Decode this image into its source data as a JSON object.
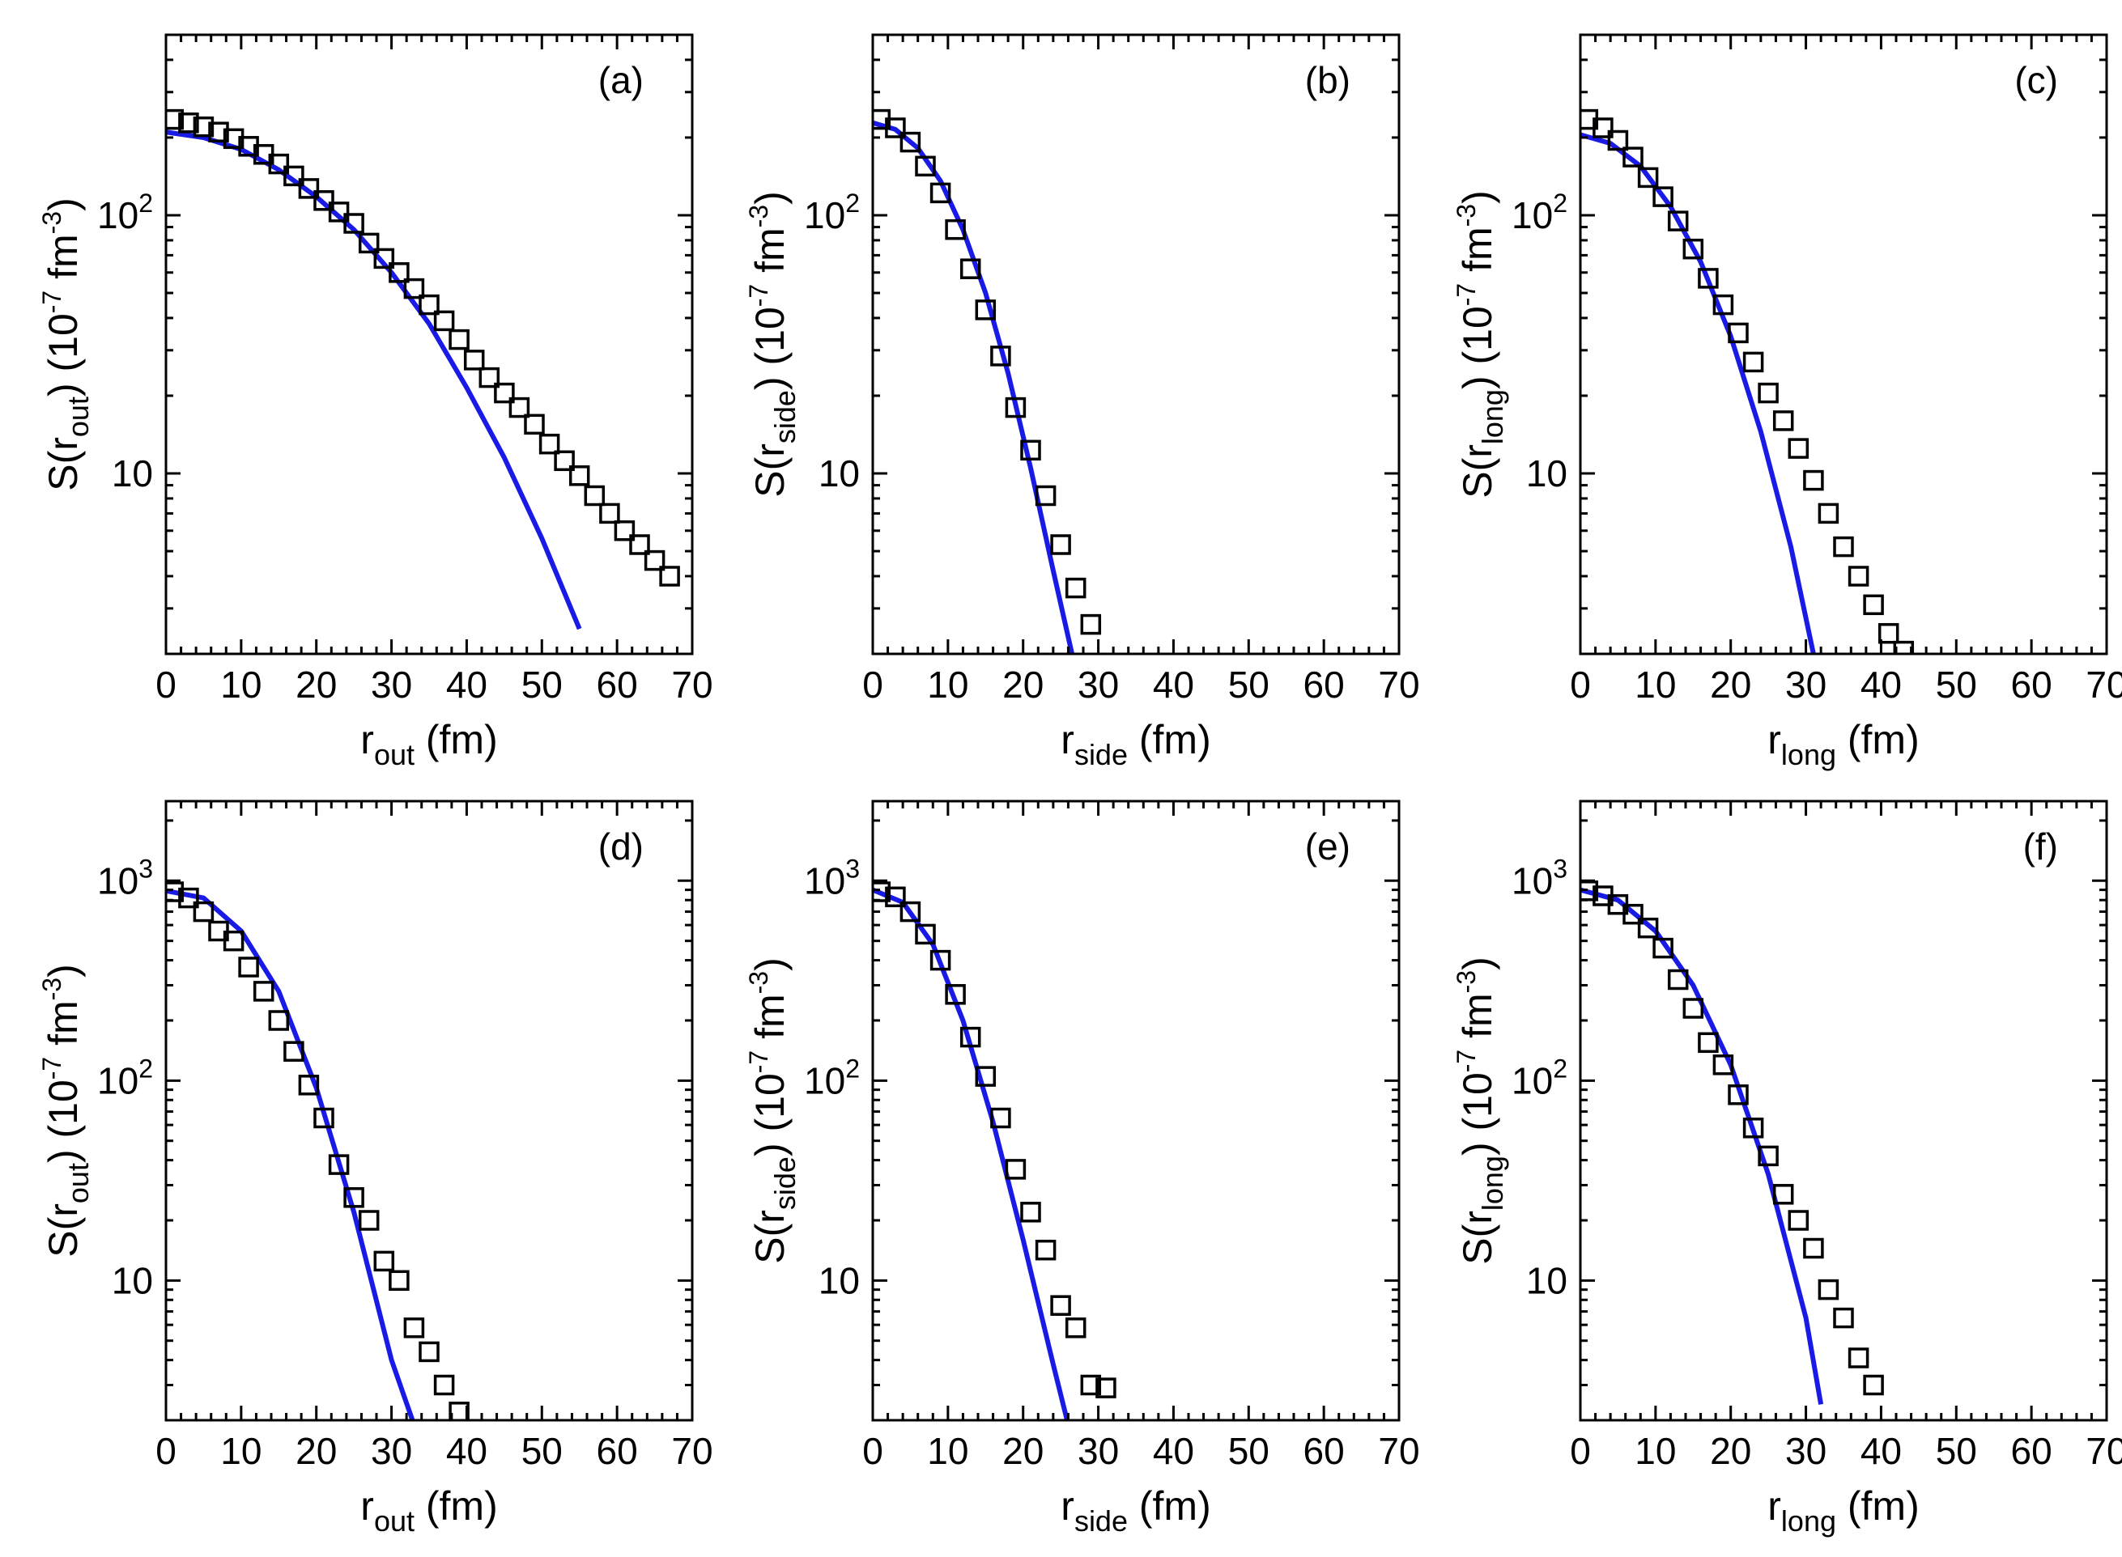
{
  "chart_data": [
    {
      "type": "scatter",
      "panel_label": "(a)",
      "xlabel": {
        "base": "r",
        "sub": "out",
        "unit": " (fm)"
      },
      "ylabel": {
        "pre": "S(r",
        "sub": "out",
        "mid": ") (10",
        "sup1": "-7",
        "mid2": " fm",
        "sup2": "-3",
        "post": ")"
      },
      "xlim": [
        0,
        70
      ],
      "ylim": [
        2,
        500
      ],
      "xticks": [
        "0",
        "10",
        "20",
        "30",
        "40",
        "50",
        "60",
        "70"
      ],
      "yticks": [
        {
          "base": "10",
          "exp": ""
        },
        {
          "base": "10",
          "exp": "2"
        }
      ],
      "series": [
        {
          "name": "data",
          "marker": "open-square",
          "color": "#000000",
          "x": [
            1,
            3,
            5,
            7,
            9,
            11,
            13,
            15,
            17,
            19,
            21,
            23,
            25,
            27,
            29,
            31,
            33,
            35,
            37,
            39,
            41,
            43,
            45,
            47,
            49,
            51,
            53,
            55,
            57,
            59,
            61,
            63,
            65,
            67
          ],
          "y": [
            235,
            228,
            220,
            210,
            198,
            185,
            172,
            158,
            142,
            127,
            114,
            103,
            93,
            78,
            68,
            60,
            52,
            45,
            39,
            33,
            27.5,
            23.5,
            20.5,
            18,
            15.5,
            13,
            11.2,
            9.8,
            8.2,
            7,
            6,
            5.3,
            4.6,
            4
          ]
        },
        {
          "name": "fit",
          "line": "solid",
          "color": "#1a1ae6",
          "x": [
            0,
            5,
            10,
            15,
            20,
            25,
            30,
            35,
            40,
            45,
            50,
            55
          ],
          "y": [
            210,
            200,
            180,
            150,
            118,
            88,
            60,
            38,
            21.5,
            11.5,
            5.6,
            2.5
          ]
        }
      ]
    },
    {
      "type": "scatter",
      "panel_label": "(b)",
      "xlabel": {
        "base": "r",
        "sub": "side",
        "unit": " (fm)"
      },
      "ylabel": {
        "pre": "S(r",
        "sub": "side",
        "mid": ") (10",
        "sup1": "-7",
        "mid2": " fm",
        "sup2": "-3",
        "post": ")"
      },
      "xlim": [
        0,
        70
      ],
      "ylim": [
        2,
        500
      ],
      "xticks": [
        "0",
        "10",
        "20",
        "30",
        "40",
        "50",
        "60",
        "70"
      ],
      "yticks": [
        {
          "base": "10",
          "exp": ""
        },
        {
          "base": "10",
          "exp": "2"
        }
      ],
      "series": [
        {
          "name": "data",
          "marker": "open-square",
          "color": "#000000",
          "x": [
            1,
            3,
            5,
            7,
            9,
            11,
            13,
            15,
            17,
            19,
            21,
            23,
            25,
            27,
            29
          ],
          "y": [
            235,
            218,
            192,
            155,
            122,
            88,
            62,
            43,
            28.5,
            18,
            12.3,
            8.2,
            5.3,
            3.6,
            2.6
          ]
        },
        {
          "name": "fit",
          "line": "solid",
          "color": "#1a1ae6",
          "x": [
            0,
            3,
            6,
            9,
            12,
            15,
            18,
            21,
            24,
            26.5
          ],
          "y": [
            228,
            215,
            182,
            136,
            88,
            50,
            24.5,
            10.5,
            4.2,
            2
          ]
        }
      ]
    },
    {
      "type": "scatter",
      "panel_label": "(c)",
      "xlabel": {
        "base": "r",
        "sub": "long",
        "unit": " (fm)"
      },
      "ylabel": {
        "pre": "S(r",
        "sub": "long",
        "mid": ") (10",
        "sup1": "-7",
        "mid2": " fm",
        "sup2": "-3",
        "post": ")"
      },
      "xlim": [
        0,
        70
      ],
      "ylim": [
        2,
        500
      ],
      "xticks": [
        "0",
        "10",
        "20",
        "30",
        "40",
        "50",
        "60",
        "70"
      ],
      "yticks": [
        {
          "base": "10",
          "exp": ""
        },
        {
          "base": "10",
          "exp": "2"
        }
      ],
      "series": [
        {
          "name": "data",
          "marker": "open-square",
          "color": "#000000",
          "x": [
            1,
            3,
            5,
            7,
            9,
            11,
            13,
            15,
            17,
            19,
            21,
            23,
            25,
            27,
            29,
            31,
            33,
            35,
            37,
            39,
            41,
            43
          ],
          "y": [
            235,
            218,
            195,
            168,
            140,
            118,
            95,
            74,
            57,
            45,
            35,
            27,
            20.5,
            16,
            12.5,
            9.4,
            7,
            5.2,
            4,
            3.1,
            2.4,
            2.05
          ]
        },
        {
          "name": "fit",
          "line": "solid",
          "color": "#1a1ae6",
          "x": [
            0,
            4,
            8,
            12,
            16,
            20,
            24,
            28,
            31
          ],
          "y": [
            205,
            190,
            155,
            108,
            66,
            34,
            14.5,
            5.2,
            2
          ]
        }
      ]
    },
    {
      "type": "scatter",
      "panel_label": "(d)",
      "xlabel": {
        "base": "r",
        "sub": "out",
        "unit": " (fm)"
      },
      "ylabel": {
        "pre": "S(r",
        "sub": "out",
        "mid": ") (10",
        "sup1": "-7",
        "mid2": " fm",
        "sup2": "-3",
        "post": ")"
      },
      "xlim": [
        0,
        70
      ],
      "ylim": [
        2,
        2500
      ],
      "xticks": [
        "0",
        "10",
        "20",
        "30",
        "40",
        "50",
        "60",
        "70"
      ],
      "yticks": [
        {
          "base": "10",
          "exp": ""
        },
        {
          "base": "10",
          "exp": "2"
        },
        {
          "base": "10",
          "exp": "3"
        }
      ],
      "series": [
        {
          "name": "data",
          "marker": "open-square",
          "color": "#000000",
          "x": [
            1,
            3,
            5,
            7,
            9,
            11,
            13,
            15,
            17,
            19,
            21,
            23,
            25,
            27,
            29,
            31,
            33,
            35,
            37,
            39
          ],
          "y": [
            880,
            820,
            700,
            560,
            500,
            370,
            280,
            200,
            140,
            95,
            65,
            38,
            26,
            20,
            12.5,
            10,
            5.8,
            4.4,
            3,
            2.2
          ]
        },
        {
          "name": "fit",
          "line": "solid",
          "color": "#1a1ae6",
          "x": [
            0,
            5,
            10,
            15,
            20,
            25,
            30,
            33
          ],
          "y": [
            890,
            820,
            560,
            280,
            92,
            22,
            4,
            1.9
          ]
        }
      ]
    },
    {
      "type": "scatter",
      "panel_label": "(e)",
      "xlabel": {
        "base": "r",
        "sub": "side",
        "unit": " (fm)"
      },
      "ylabel": {
        "pre": "S(r",
        "sub": "side",
        "mid": ") (10",
        "sup1": "-7",
        "mid2": " fm",
        "sup2": "-3",
        "post": ")"
      },
      "xlim": [
        0,
        70
      ],
      "ylim": [
        2,
        2500
      ],
      "xticks": [
        "0",
        "10",
        "20",
        "30",
        "40",
        "50",
        "60",
        "70"
      ],
      "yticks": [
        {
          "base": "10",
          "exp": ""
        },
        {
          "base": "10",
          "exp": "2"
        },
        {
          "base": "10",
          "exp": "3"
        }
      ],
      "series": [
        {
          "name": "data",
          "marker": "open-square",
          "color": "#000000",
          "x": [
            1,
            3,
            5,
            7,
            9,
            11,
            13,
            15,
            17,
            19,
            21,
            23,
            25,
            27,
            29,
            31
          ],
          "y": [
            880,
            830,
            700,
            540,
            400,
            270,
            165,
            105,
            65,
            36,
            22,
            14.2,
            7.5,
            5.8,
            3,
            2.9
          ]
        },
        {
          "name": "fit",
          "line": "solid",
          "color": "#1a1ae6",
          "x": [
            0,
            4,
            8,
            12,
            16,
            20,
            24,
            26
          ],
          "y": [
            900,
            780,
            480,
            200,
            62,
            16,
            3.8,
            1.9
          ]
        }
      ]
    },
    {
      "type": "scatter",
      "panel_label": "(f)",
      "xlabel": {
        "base": "r",
        "sub": "long",
        "unit": " (fm)"
      },
      "ylabel": {
        "pre": "S(r",
        "sub": "long",
        "mid": ") (10",
        "sup1": "-7",
        "mid2": " fm",
        "sup2": "-3",
        "post": ")"
      },
      "xlim": [
        0,
        70
      ],
      "ylim": [
        2,
        2500
      ],
      "xticks": [
        "0",
        "10",
        "20",
        "30",
        "40",
        "50",
        "60",
        "70"
      ],
      "yticks": [
        {
          "base": "10",
          "exp": ""
        },
        {
          "base": "10",
          "exp": "2"
        },
        {
          "base": "10",
          "exp": "3"
        }
      ],
      "series": [
        {
          "name": "data",
          "marker": "open-square",
          "color": "#000000",
          "x": [
            1,
            3,
            5,
            7,
            9,
            11,
            13,
            15,
            17,
            19,
            21,
            23,
            25,
            27,
            29,
            31,
            33,
            35,
            37,
            39
          ],
          "y": [
            890,
            840,
            760,
            680,
            580,
            460,
            320,
            230,
            155,
            120,
            85,
            58,
            42,
            27,
            20,
            14.5,
            9,
            6.5,
            4.1,
            3
          ]
        },
        {
          "name": "fit",
          "line": "solid",
          "color": "#1a1ae6",
          "x": [
            0,
            5,
            10,
            15,
            20,
            25,
            30,
            32
          ],
          "y": [
            900,
            800,
            560,
            300,
            120,
            34,
            6.5,
            2.4
          ]
        }
      ]
    }
  ]
}
